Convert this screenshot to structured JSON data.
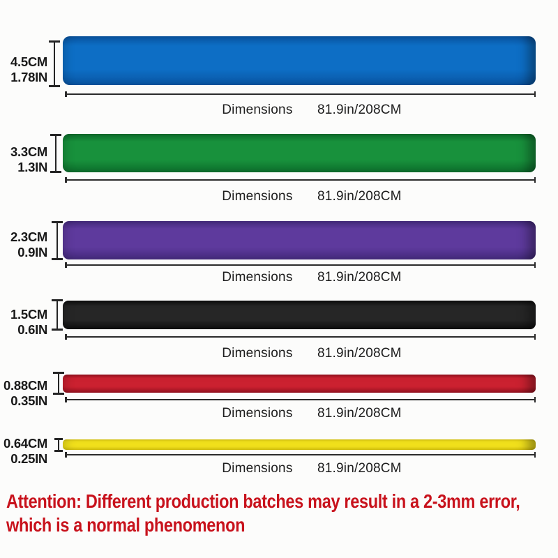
{
  "dimensions_label": "Dimensions",
  "dimensions_value": "81.9in/208CM",
  "bands": [
    {
      "id": "blue",
      "cm_label": "4.5CM",
      "in_label": "1.78IN",
      "color": "#0d6ec5",
      "color_dark": "#0a55a2"
    },
    {
      "id": "green",
      "cm_label": "3.3CM",
      "in_label": "1.3IN",
      "color": "#18913c",
      "color_dark": "#0d6e2c"
    },
    {
      "id": "purple",
      "cm_label": "2.3CM",
      "in_label": "0.9IN",
      "color": "#5e3a9d",
      "color_dark": "#452b7e"
    },
    {
      "id": "black",
      "cm_label": "1.5CM",
      "in_label": "0.6IN",
      "color": "#262626",
      "color_dark": "#0e0e0e"
    },
    {
      "id": "red",
      "cm_label": "0.88CM",
      "in_label": "0.35IN",
      "color": "#cb2130",
      "color_dark": "#991220"
    },
    {
      "id": "yellow",
      "cm_label": "0.64CM",
      "in_label": "0.25IN",
      "color": "#f4e31c",
      "color_dark": "#ddc90f"
    }
  ],
  "attention": {
    "line1": "Attention: Different production batches may result in a 2-3mm error,",
    "line2": "which is a normal phenomenon",
    "color": "#c8121c"
  }
}
